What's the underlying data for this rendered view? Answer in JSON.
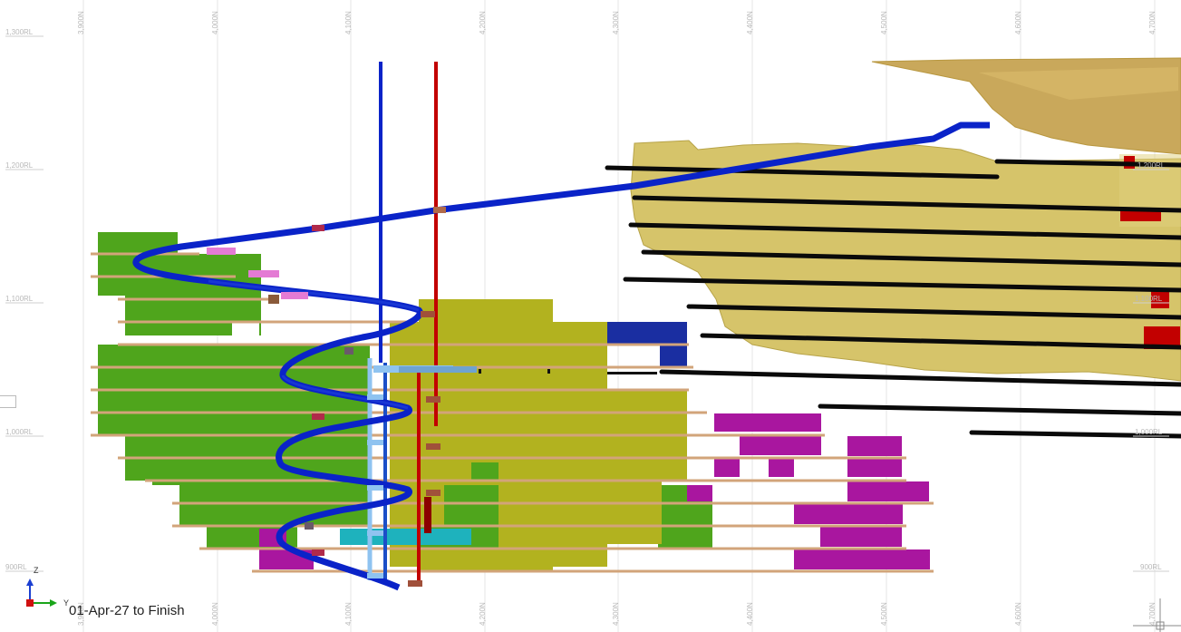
{
  "view": {
    "caption": "01-Apr-27 to Finish",
    "northing_labels": [
      "3,900N",
      "4,000N",
      "4,100N",
      "4,200N",
      "4,300N",
      "4,400N",
      "4,500N",
      "4,600N",
      "4,700N"
    ],
    "rl_labels_left": [
      "1,300RL",
      "1,200RL",
      "1,100RL",
      "1,000RL",
      "900RL"
    ],
    "rl_labels_right": [
      "1,200RL",
      "1,100RL",
      "1,000RL",
      "900RL"
    ],
    "axis_triad": {
      "up_label": "Z",
      "right_label": "Y"
    }
  },
  "colors": {
    "ramp_blue": "#0a23c8",
    "shaft_red": "#c20000",
    "stope_green": "#4fa51c",
    "stope_olive": "#b2b21f",
    "stope_magenta": "#a9169f",
    "stope_navy": "#1a2ea1",
    "stope_cyan": "#1eb2bd",
    "drive_tan": "#d2a47a",
    "ore_body_khaki": "#d6c46a",
    "drive_black": "#0a0a0a",
    "topo_tan": "#c9a85b",
    "pink_stub": "#e47bd4",
    "light_blue": "#8fc3f0"
  }
}
